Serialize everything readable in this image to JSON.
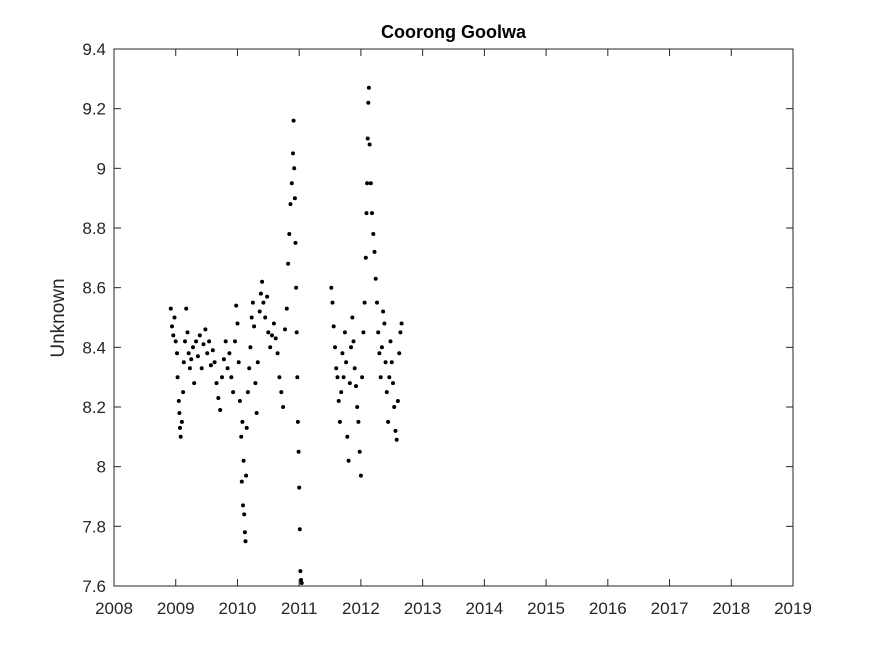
{
  "chart_data": {
    "type": "scatter",
    "title": "Coorong Goolwa",
    "xlabel": "",
    "ylabel": "Unknown",
    "xlim": [
      2008,
      2019
    ],
    "ylim": [
      7.6,
      9.4
    ],
    "x_ticks": [
      "2008",
      "2009",
      "2010",
      "2011",
      "2012",
      "2013",
      "2014",
      "2015",
      "2016",
      "2017",
      "2018",
      "2019"
    ],
    "y_ticks": [
      "7.6",
      "7.8",
      "8",
      "8.2",
      "8.4",
      "8.6",
      "8.8",
      "9",
      "9.2",
      "9.4"
    ],
    "grid": false,
    "marker_color": "#000000",
    "series": [
      {
        "points": [
          [
            2008.92,
            8.53
          ],
          [
            2008.94,
            8.47
          ],
          [
            2008.96,
            8.44
          ],
          [
            2008.98,
            8.5
          ],
          [
            2009.0,
            8.42
          ],
          [
            2009.02,
            8.38
          ],
          [
            2009.03,
            8.3
          ],
          [
            2009.05,
            8.22
          ],
          [
            2009.06,
            8.18
          ],
          [
            2009.07,
            8.13
          ],
          [
            2009.08,
            8.1
          ],
          [
            2009.1,
            8.15
          ],
          [
            2009.12,
            8.25
          ],
          [
            2009.13,
            8.35
          ],
          [
            2009.15,
            8.42
          ],
          [
            2009.17,
            8.53
          ],
          [
            2009.19,
            8.45
          ],
          [
            2009.21,
            8.38
          ],
          [
            2009.23,
            8.33
          ],
          [
            2009.25,
            8.36
          ],
          [
            2009.28,
            8.4
          ],
          [
            2009.3,
            8.28
          ],
          [
            2009.33,
            8.42
          ],
          [
            2009.36,
            8.37
          ],
          [
            2009.39,
            8.44
          ],
          [
            2009.42,
            8.33
          ],
          [
            2009.45,
            8.41
          ],
          [
            2009.48,
            8.46
          ],
          [
            2009.51,
            8.38
          ],
          [
            2009.54,
            8.42
          ],
          [
            2009.57,
            8.34
          ],
          [
            2009.6,
            8.39
          ],
          [
            2009.63,
            8.35
          ],
          [
            2009.66,
            8.28
          ],
          [
            2009.69,
            8.23
          ],
          [
            2009.72,
            8.19
          ],
          [
            2009.75,
            8.3
          ],
          [
            2009.78,
            8.36
          ],
          [
            2009.81,
            8.42
          ],
          [
            2009.84,
            8.33
          ],
          [
            2009.87,
            8.38
          ],
          [
            2009.9,
            8.3
          ],
          [
            2009.93,
            8.25
          ],
          [
            2009.96,
            8.42
          ],
          [
            2009.98,
            8.54
          ],
          [
            2010.0,
            8.48
          ],
          [
            2010.02,
            8.35
          ],
          [
            2010.04,
            8.22
          ],
          [
            2010.06,
            8.1
          ],
          [
            2010.07,
            7.95
          ],
          [
            2010.08,
            8.15
          ],
          [
            2010.09,
            7.87
          ],
          [
            2010.1,
            8.02
          ],
          [
            2010.11,
            7.84
          ],
          [
            2010.12,
            7.78
          ],
          [
            2010.13,
            7.75
          ],
          [
            2010.14,
            7.97
          ],
          [
            2010.15,
            8.13
          ],
          [
            2010.17,
            8.25
          ],
          [
            2010.19,
            8.33
          ],
          [
            2010.21,
            8.4
          ],
          [
            2010.23,
            8.5
          ],
          [
            2010.25,
            8.55
          ],
          [
            2010.27,
            8.47
          ],
          [
            2010.29,
            8.28
          ],
          [
            2010.31,
            8.18
          ],
          [
            2010.33,
            8.35
          ],
          [
            2010.36,
            8.52
          ],
          [
            2010.38,
            8.58
          ],
          [
            2010.4,
            8.62
          ],
          [
            2010.42,
            8.55
          ],
          [
            2010.45,
            8.5
          ],
          [
            2010.48,
            8.57
          ],
          [
            2010.5,
            8.45
          ],
          [
            2010.53,
            8.4
          ],
          [
            2010.56,
            8.44
          ],
          [
            2010.59,
            8.48
          ],
          [
            2010.62,
            8.43
          ],
          [
            2010.65,
            8.38
          ],
          [
            2010.68,
            8.3
          ],
          [
            2010.71,
            8.25
          ],
          [
            2010.74,
            8.2
          ],
          [
            2010.77,
            8.46
          ],
          [
            2010.8,
            8.53
          ],
          [
            2010.82,
            8.68
          ],
          [
            2010.84,
            8.78
          ],
          [
            2010.86,
            8.88
          ],
          [
            2010.88,
            8.95
          ],
          [
            2010.9,
            9.05
          ],
          [
            2010.91,
            9.16
          ],
          [
            2010.92,
            9.0
          ],
          [
            2010.93,
            8.9
          ],
          [
            2010.94,
            8.75
          ],
          [
            2010.95,
            8.6
          ],
          [
            2010.96,
            8.45
          ],
          [
            2010.97,
            8.3
          ],
          [
            2010.98,
            8.15
          ],
          [
            2010.99,
            8.05
          ],
          [
            2011.0,
            7.93
          ],
          [
            2011.01,
            7.79
          ],
          [
            2011.02,
            7.65
          ],
          [
            2011.03,
            7.62
          ],
          [
            2011.04,
            7.61
          ],
          [
            2011.52,
            8.6
          ],
          [
            2011.54,
            8.55
          ],
          [
            2011.56,
            8.47
          ],
          [
            2011.58,
            8.4
          ],
          [
            2011.6,
            8.33
          ],
          [
            2011.62,
            8.3
          ],
          [
            2011.64,
            8.22
          ],
          [
            2011.66,
            8.15
          ],
          [
            2011.68,
            8.25
          ],
          [
            2011.7,
            8.38
          ],
          [
            2011.72,
            8.3
          ],
          [
            2011.74,
            8.45
          ],
          [
            2011.76,
            8.35
          ],
          [
            2011.78,
            8.1
          ],
          [
            2011.8,
            8.02
          ],
          [
            2011.82,
            8.28
          ],
          [
            2011.84,
            8.4
          ],
          [
            2011.86,
            8.5
          ],
          [
            2011.88,
            8.42
          ],
          [
            2011.9,
            8.33
          ],
          [
            2011.92,
            8.27
          ],
          [
            2011.94,
            8.2
          ],
          [
            2011.96,
            8.15
          ],
          [
            2011.98,
            8.05
          ],
          [
            2012.0,
            7.97
          ],
          [
            2012.02,
            8.3
          ],
          [
            2012.04,
            8.45
          ],
          [
            2012.06,
            8.55
          ],
          [
            2012.08,
            8.7
          ],
          [
            2012.09,
            8.85
          ],
          [
            2012.1,
            8.95
          ],
          [
            2012.11,
            9.1
          ],
          [
            2012.12,
            9.22
          ],
          [
            2012.13,
            9.27
          ],
          [
            2012.14,
            9.08
          ],
          [
            2012.16,
            8.95
          ],
          [
            2012.18,
            8.85
          ],
          [
            2012.2,
            8.78
          ],
          [
            2012.22,
            8.72
          ],
          [
            2012.24,
            8.63
          ],
          [
            2012.26,
            8.55
          ],
          [
            2012.28,
            8.45
          ],
          [
            2012.3,
            8.38
          ],
          [
            2012.32,
            8.3
          ],
          [
            2012.34,
            8.4
          ],
          [
            2012.36,
            8.52
          ],
          [
            2012.38,
            8.48
          ],
          [
            2012.4,
            8.35
          ],
          [
            2012.42,
            8.25
          ],
          [
            2012.44,
            8.15
          ],
          [
            2012.46,
            8.3
          ],
          [
            2012.48,
            8.42
          ],
          [
            2012.5,
            8.35
          ],
          [
            2012.52,
            8.28
          ],
          [
            2012.54,
            8.2
          ],
          [
            2012.56,
            8.12
          ],
          [
            2012.58,
            8.09
          ],
          [
            2012.6,
            8.22
          ],
          [
            2012.62,
            8.38
          ],
          [
            2012.64,
            8.45
          ],
          [
            2012.66,
            8.48
          ]
        ]
      }
    ]
  }
}
